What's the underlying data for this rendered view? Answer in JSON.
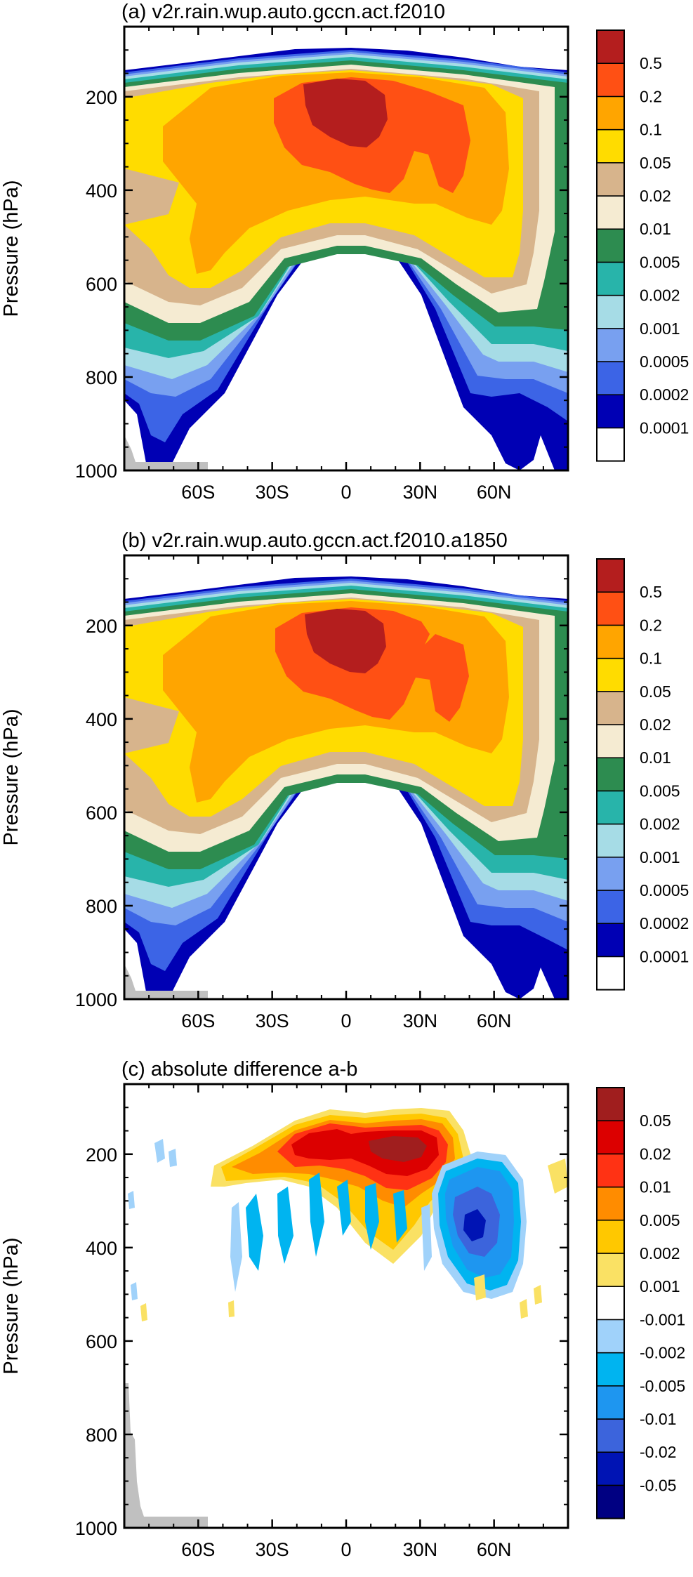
{
  "chart_data": [
    {
      "type": "contour",
      "title": "(a) v2r.rain.wup.auto.gccn.act.f2010",
      "ylabel": "Pressure (hPa)",
      "yticks": [
        "200",
        "400",
        "600",
        "800",
        "1000"
      ],
      "xticks": [
        "60S",
        "30S",
        "0",
        "30N",
        "60N"
      ],
      "ylim": [
        1000,
        50
      ],
      "colorbar": [
        "0.5",
        "0.2",
        "0.1",
        "0.05",
        "0.02",
        "0.01",
        "0.005",
        "0.002",
        "0.001",
        "0.0005",
        "0.0002",
        "0.0001"
      ],
      "colors": [
        "#ffffff",
        "#0000b4",
        "#3c64e6",
        "#78a0f0",
        "#a6dce6",
        "#28b4aa",
        "#2d8c50",
        "#f5ebd2",
        "#d7b48c",
        "#ffdc00",
        "#ffa500",
        "#ff5014",
        "#b41e1e"
      ]
    },
    {
      "type": "contour",
      "title": "(b) v2r.rain.wup.auto.gccn.act.f2010.a1850",
      "ylabel": "Pressure (hPa)",
      "yticks": [
        "200",
        "400",
        "600",
        "800",
        "1000"
      ],
      "xticks": [
        "60S",
        "30S",
        "0",
        "30N",
        "60N"
      ],
      "ylim": [
        1000,
        50
      ],
      "colorbar": [
        "0.5",
        "0.2",
        "0.1",
        "0.05",
        "0.02",
        "0.01",
        "0.005",
        "0.002",
        "0.001",
        "0.0005",
        "0.0002",
        "0.0001"
      ],
      "colors": [
        "#ffffff",
        "#0000b4",
        "#3c64e6",
        "#78a0f0",
        "#a6dce6",
        "#28b4aa",
        "#2d8c50",
        "#f5ebd2",
        "#d7b48c",
        "#ffdc00",
        "#ffa500",
        "#ff5014",
        "#b41e1e"
      ]
    },
    {
      "type": "contour",
      "title": "(c) absolute difference a-b",
      "ylabel": "Pressure (hPa)",
      "yticks": [
        "200",
        "400",
        "600",
        "800",
        "1000"
      ],
      "xticks": [
        "60S",
        "30S",
        "0",
        "30N",
        "60N"
      ],
      "ylim": [
        1000,
        50
      ],
      "colorbar": [
        "0.05",
        "0.02",
        "0.01",
        "0.005",
        "0.002",
        "0.001",
        "-0.001",
        "-0.002",
        "-0.005",
        "-0.01",
        "-0.02",
        "-0.05"
      ],
      "colors": [
        "#000082",
        "#0014b4",
        "#3c64dc",
        "#1e96f0",
        "#00b4f0",
        "#a0d2fa",
        "#ffffff",
        "#fae164",
        "#ffc800",
        "#ff8c00",
        "#ff3214",
        "#dc0000",
        "#a01e1e"
      ]
    }
  ]
}
